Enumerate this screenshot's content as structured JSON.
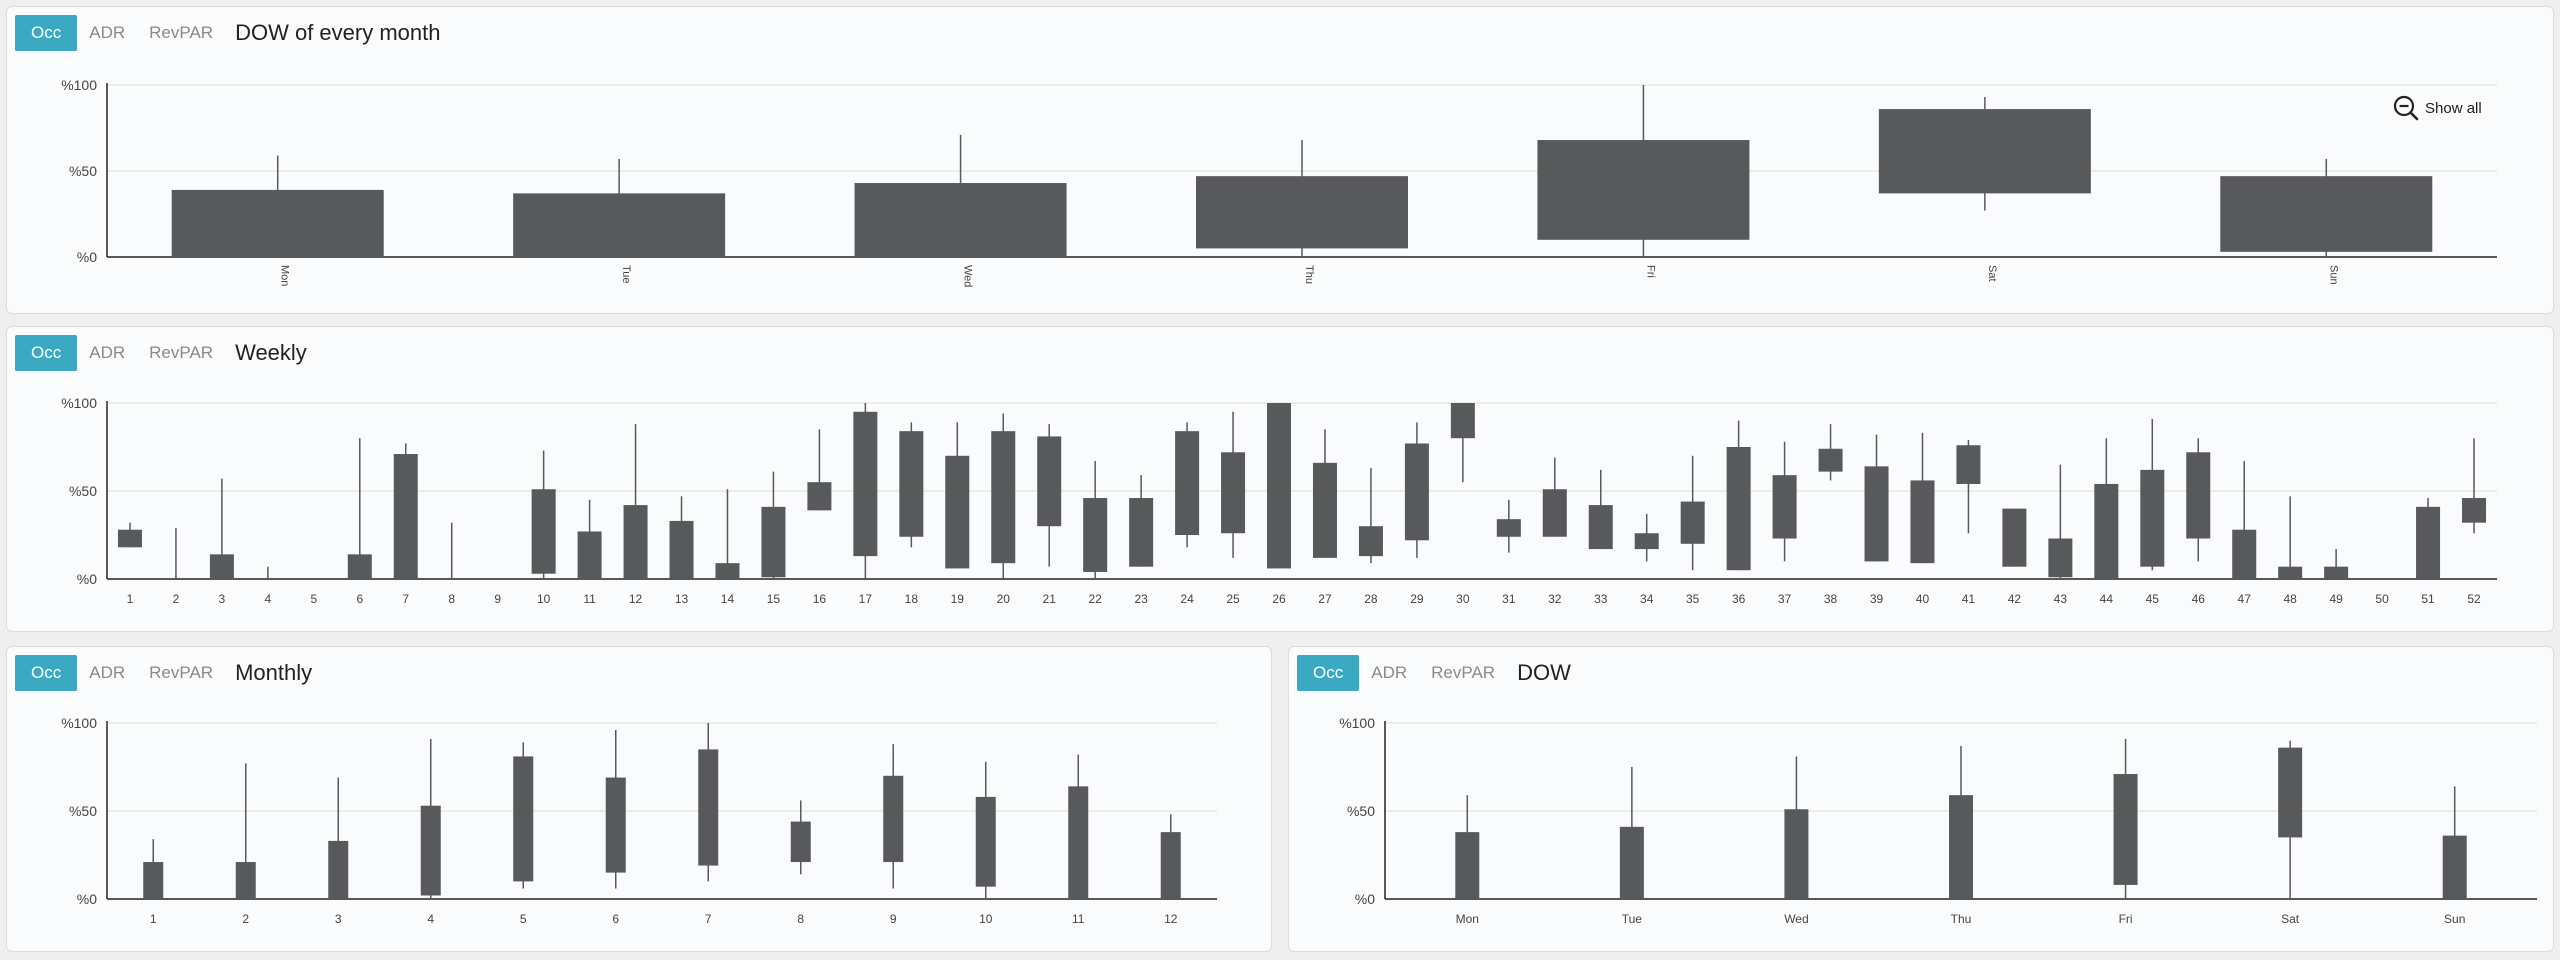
{
  "tabs": [
    "Occ",
    "ADR",
    "RevPAR"
  ],
  "show_all_label": "Show all",
  "colors": {
    "bar": "#58595b",
    "accent": "#3aa9c1",
    "grid": "#dcdcdc",
    "axis": "#222222"
  },
  "panels": [
    {
      "title": "DOW of every month",
      "chart_data": {
        "type": "candlestick",
        "categories": [
          "Mon",
          "Tue",
          "Wed",
          "Thu",
          "Fri",
          "Sat",
          "Sun"
        ],
        "bars": [
          [
            0,
            39
          ],
          [
            0,
            37
          ],
          [
            0,
            43
          ],
          [
            5,
            47
          ],
          [
            10,
            68
          ],
          [
            37,
            86
          ],
          [
            3,
            47
          ]
        ],
        "whiskers": [
          [
            0,
            59
          ],
          [
            0,
            57
          ],
          [
            0,
            71
          ],
          [
            0,
            68
          ],
          [
            0,
            100
          ],
          [
            27,
            93
          ],
          [
            0,
            57
          ]
        ],
        "y_ticks": [
          "%0",
          "%50",
          "%100"
        ],
        "ylim": [
          0,
          100
        ],
        "grid": true
      }
    },
    {
      "title": "Weekly",
      "chart_data": {
        "type": "candlestick",
        "categories": [
          "1",
          "2",
          "3",
          "4",
          "5",
          "6",
          "7",
          "8",
          "9",
          "10",
          "11",
          "12",
          "13",
          "14",
          "15",
          "16",
          "17",
          "18",
          "19",
          "20",
          "21",
          "22",
          "23",
          "24",
          "25",
          "26",
          "27",
          "28",
          "29",
          "30",
          "31",
          "32",
          "33",
          "34",
          "35",
          "36",
          "37",
          "38",
          "39",
          "40",
          "41",
          "42",
          "43",
          "44",
          "45",
          "46",
          "47",
          "48",
          "49",
          "50",
          "51",
          "52"
        ],
        "bars": [
          [
            18,
            28
          ],
          [
            0,
            0
          ],
          [
            0,
            14
          ],
          [
            0,
            0
          ],
          [
            0,
            0
          ],
          [
            0,
            14
          ],
          [
            0,
            71
          ],
          [
            0,
            0
          ],
          [
            0,
            0
          ],
          [
            3,
            51
          ],
          [
            0,
            27
          ],
          [
            0,
            42
          ],
          [
            0,
            33
          ],
          [
            0,
            9
          ],
          [
            1,
            41
          ],
          [
            39,
            55
          ],
          [
            13,
            95
          ],
          [
            24,
            84
          ],
          [
            6,
            70
          ],
          [
            9,
            84
          ],
          [
            30,
            81
          ],
          [
            4,
            46
          ],
          [
            7,
            46
          ],
          [
            25,
            84
          ],
          [
            26,
            72
          ],
          [
            6,
            100
          ],
          [
            12,
            66
          ],
          [
            13,
            30
          ],
          [
            22,
            77
          ],
          [
            80,
            100
          ],
          [
            24,
            34
          ],
          [
            24,
            51
          ],
          [
            17,
            42
          ],
          [
            17,
            26
          ],
          [
            20,
            44
          ],
          [
            5,
            75
          ],
          [
            23,
            59
          ],
          [
            61,
            74
          ],
          [
            10,
            64
          ],
          [
            9,
            56
          ],
          [
            54,
            76
          ],
          [
            7,
            40
          ],
          [
            1,
            23
          ],
          [
            0,
            54
          ],
          [
            7,
            62
          ],
          [
            23,
            72
          ],
          [
            0,
            28
          ],
          [
            0,
            7
          ],
          [
            0,
            7
          ],
          [
            0,
            0
          ],
          [
            0,
            41
          ],
          [
            32,
            46
          ]
        ],
        "whiskers": [
          [
            18,
            32
          ],
          [
            0,
            29
          ],
          [
            0,
            57
          ],
          [
            0,
            7
          ],
          [
            0,
            0
          ],
          [
            0,
            80
          ],
          [
            0,
            77
          ],
          [
            0,
            32
          ],
          [
            0,
            0
          ],
          [
            0,
            73
          ],
          [
            0,
            45
          ],
          [
            0,
            88
          ],
          [
            0,
            47
          ],
          [
            0,
            51
          ],
          [
            0,
            61
          ],
          [
            39,
            85
          ],
          [
            0,
            100
          ],
          [
            18,
            89
          ],
          [
            6,
            89
          ],
          [
            0,
            94
          ],
          [
            7,
            88
          ],
          [
            0,
            67
          ],
          [
            7,
            59
          ],
          [
            18,
            89
          ],
          [
            12,
            95
          ],
          [
            6,
            100
          ],
          [
            12,
            85
          ],
          [
            9,
            63
          ],
          [
            12,
            89
          ],
          [
            55,
            100
          ],
          [
            15,
            45
          ],
          [
            24,
            69
          ],
          [
            17,
            62
          ],
          [
            10,
            37
          ],
          [
            5,
            70
          ],
          [
            5,
            90
          ],
          [
            10,
            78
          ],
          [
            56,
            88
          ],
          [
            10,
            82
          ],
          [
            9,
            83
          ],
          [
            26,
            79
          ],
          [
            7,
            40
          ],
          [
            0,
            65
          ],
          [
            0,
            80
          ],
          [
            5,
            91
          ],
          [
            10,
            80
          ],
          [
            0,
            67
          ],
          [
            0,
            47
          ],
          [
            0,
            17
          ],
          [
            0,
            0
          ],
          [
            0,
            46
          ],
          [
            26,
            80
          ]
        ],
        "y_ticks": [
          "%0",
          "%50",
          "%100"
        ],
        "ylim": [
          0,
          100
        ],
        "grid": true
      }
    },
    {
      "title": "Monthly",
      "chart_data": {
        "type": "candlestick",
        "categories": [
          "1",
          "2",
          "3",
          "4",
          "5",
          "6",
          "7",
          "8",
          "9",
          "10",
          "11",
          "12"
        ],
        "bars": [
          [
            0,
            21
          ],
          [
            0,
            21
          ],
          [
            0,
            33
          ],
          [
            2,
            53
          ],
          [
            10,
            81
          ],
          [
            15,
            69
          ],
          [
            19,
            85
          ],
          [
            21,
            44
          ],
          [
            21,
            70
          ],
          [
            7,
            58
          ],
          [
            0,
            64
          ],
          [
            0,
            38
          ]
        ],
        "whiskers": [
          [
            0,
            34
          ],
          [
            0,
            77
          ],
          [
            0,
            69
          ],
          [
            0,
            91
          ],
          [
            6,
            89
          ],
          [
            6,
            96
          ],
          [
            10,
            100
          ],
          [
            14,
            56
          ],
          [
            6,
            88
          ],
          [
            0,
            78
          ],
          [
            0,
            82
          ],
          [
            0,
            48
          ]
        ],
        "y_ticks": [
          "%0",
          "%50",
          "%100"
        ],
        "ylim": [
          0,
          100
        ],
        "grid": true
      }
    },
    {
      "title": "DOW",
      "chart_data": {
        "type": "candlestick",
        "categories": [
          "Mon",
          "Tue",
          "Wed",
          "Thu",
          "Fri",
          "Sat",
          "Sun"
        ],
        "bars": [
          [
            0,
            38
          ],
          [
            0,
            41
          ],
          [
            0,
            51
          ],
          [
            0,
            59
          ],
          [
            8,
            71
          ],
          [
            35,
            86
          ],
          [
            0,
            36
          ]
        ],
        "whiskers": [
          [
            0,
            59
          ],
          [
            0,
            75
          ],
          [
            0,
            81
          ],
          [
            0,
            87
          ],
          [
            0,
            91
          ],
          [
            0,
            90
          ],
          [
            0,
            64
          ]
        ],
        "y_ticks": [
          "%0",
          "%50",
          "%100"
        ],
        "ylim": [
          0,
          100
        ],
        "grid": true
      }
    }
  ]
}
